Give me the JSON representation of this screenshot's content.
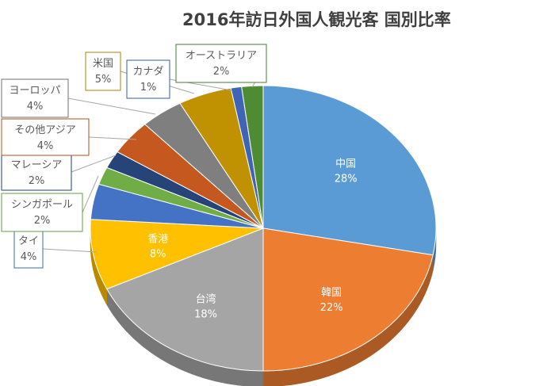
{
  "chart_data": {
    "type": "pie",
    "title": "2016年訪日外国人観光客  国別比率",
    "slices": [
      {
        "name": "中国",
        "label": "28%",
        "value": 28,
        "color": "#5B9BD5",
        "label_pos": "inside"
      },
      {
        "name": "韓国",
        "label": "22%",
        "value": 22,
        "color": "#ED7D31",
        "label_pos": "inside"
      },
      {
        "name": "台湾",
        "label": "18%",
        "value": 18,
        "color": "#A5A5A5",
        "label_pos": "inside"
      },
      {
        "name": "香港",
        "label": "8%",
        "value": 8,
        "color": "#FFC000",
        "label_pos": "inside"
      },
      {
        "name": "タイ",
        "label": "4%",
        "value": 4,
        "color": "#4472C4",
        "label_pos": "callout"
      },
      {
        "name": "シンガポール",
        "label": "2%",
        "value": 2,
        "color": "#70AD47",
        "label_pos": "callout"
      },
      {
        "name": "マレーシア",
        "label": "2%",
        "value": 2,
        "color": "#264478",
        "label_pos": "callout"
      },
      {
        "name": "その他アジア",
        "label": "4%",
        "value": 4,
        "color": "#C5581E",
        "label_pos": "callout"
      },
      {
        "name": "ヨーロッパ",
        "label": "4%",
        "value": 4,
        "color": "#7F7F7F",
        "label_pos": "callout"
      },
      {
        "name": "米国",
        "label": "5%",
        "value": 5,
        "color": "#C09100",
        "label_pos": "callout"
      },
      {
        "name": "カナダ",
        "label": "1%",
        "value": 1,
        "color": "#3F64B6",
        "label_pos": "callout"
      },
      {
        "name": "オーストラリア",
        "label": "2%",
        "value": 2,
        "color": "#4F8B32",
        "label_pos": "callout"
      }
    ],
    "legend": "none",
    "style": "3d-pie"
  }
}
